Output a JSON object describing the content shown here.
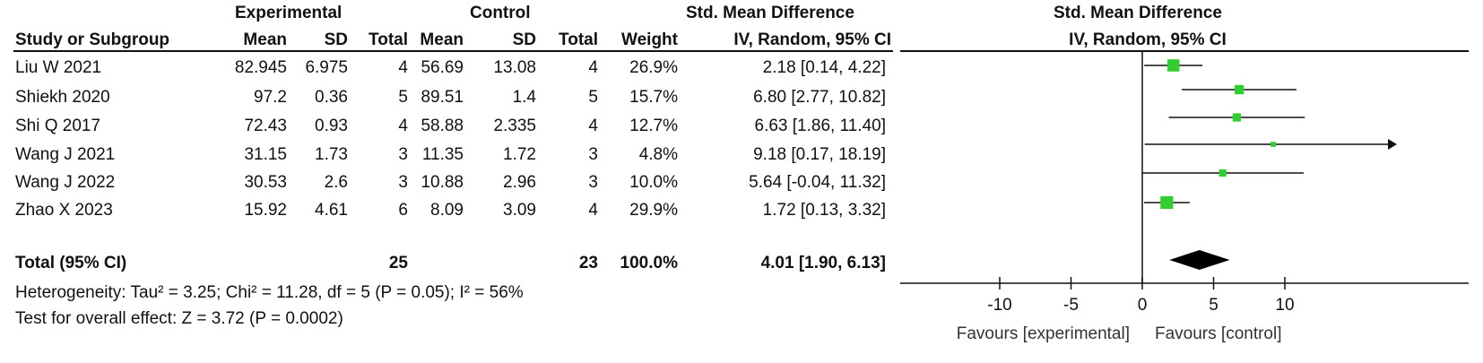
{
  "header": {
    "experimental_group": "Experimental",
    "control_group": "Control",
    "smd_group": "Std. Mean Difference",
    "plot_group": "Std. Mean Difference",
    "col_study": "Study or Subgroup",
    "col_exp_mean": "Mean",
    "col_exp_sd": "SD",
    "col_exp_total": "Total",
    "col_ctl_mean": "Mean",
    "col_ctl_sd": "SD",
    "col_ctl_total": "Total",
    "col_weight": "Weight",
    "col_ci": "IV, Random, 95% CI",
    "plot_ci": "IV, Random, 95% CI"
  },
  "rows": [
    {
      "study": "Liu W 2021",
      "exp_mean": "82.945",
      "exp_sd": "6.975",
      "exp_total": "4",
      "ctl_mean": "56.69",
      "ctl_sd": "13.08",
      "ctl_total": "4",
      "weight": "26.9%",
      "ci_text": "2.18 [0.14, 4.22]"
    },
    {
      "study": "Shiekh 2020",
      "exp_mean": "97.2",
      "exp_sd": "0.36",
      "exp_total": "5",
      "ctl_mean": "89.51",
      "ctl_sd": "1.4",
      "ctl_total": "5",
      "weight": "15.7%",
      "ci_text": "6.80 [2.77, 10.82]"
    },
    {
      "study": "Shi Q 2017",
      "exp_mean": "72.43",
      "exp_sd": "0.93",
      "exp_total": "4",
      "ctl_mean": "58.88",
      "ctl_sd": "2.335",
      "ctl_total": "4",
      "weight": "12.7%",
      "ci_text": "6.63 [1.86, 11.40]"
    },
    {
      "study": "Wang J 2021",
      "exp_mean": "31.15",
      "exp_sd": "1.73",
      "exp_total": "3",
      "ctl_mean": "11.35",
      "ctl_sd": "1.72",
      "ctl_total": "3",
      "weight": "4.8%",
      "ci_text": "9.18 [0.17, 18.19]"
    },
    {
      "study": "Wang J 2022",
      "exp_mean": "30.53",
      "exp_sd": "2.6",
      "exp_total": "3",
      "ctl_mean": "10.88",
      "ctl_sd": "2.96",
      "ctl_total": "3",
      "weight": "10.0%",
      "ci_text": "5.64 [-0.04, 11.32]"
    },
    {
      "study": "Zhao X 2023",
      "exp_mean": "15.92",
      "exp_sd": "4.61",
      "exp_total": "6",
      "ctl_mean": "8.09",
      "ctl_sd": "3.09",
      "ctl_total": "4",
      "weight": "29.9%",
      "ci_text": "1.72 [0.13, 3.32]"
    }
  ],
  "total": {
    "label": "Total (95% CI)",
    "exp_total": "25",
    "ctl_total": "23",
    "weight": "100.0%",
    "ci_text": "4.01 [1.90, 6.13]"
  },
  "footer": {
    "heterogeneity": "Heterogeneity: Tau² = 3.25; Chi² = 11.28, df = 5 (P = 0.05); I² = 56%",
    "overall_effect": "Test for overall effect: Z = 3.72 (P = 0.0002)"
  },
  "axis": {
    "favours_left": "Favours [experimental]",
    "favours_right": "Favours [control]"
  },
  "chart_data": {
    "type": "scatter",
    "xlim": [
      -20,
      20
    ],
    "ticks": [
      -10,
      -5,
      0,
      5,
      10
    ],
    "tick_labels": [
      "-10",
      "-5",
      "0",
      "5",
      "10"
    ],
    "marker_color": "#33cc33",
    "diamond_color": "#000000",
    "studies": [
      {
        "label": "Liu W 2021",
        "est": 2.18,
        "lo": 0.14,
        "hi": 4.22,
        "weight": 26.9
      },
      {
        "label": "Shiekh 2020",
        "est": 6.8,
        "lo": 2.77,
        "hi": 10.82,
        "weight": 15.7
      },
      {
        "label": "Shi Q 2017",
        "est": 6.63,
        "lo": 1.86,
        "hi": 11.4,
        "weight": 12.7
      },
      {
        "label": "Wang J 2021",
        "est": 9.18,
        "lo": 0.17,
        "hi": 18.19,
        "weight": 4.8
      },
      {
        "label": "Wang J 2022",
        "est": 5.64,
        "lo": -0.04,
        "hi": 11.32,
        "weight": 10.0
      },
      {
        "label": "Zhao X 2023",
        "est": 1.72,
        "lo": 0.13,
        "hi": 3.32,
        "weight": 29.9
      }
    ],
    "pooled": {
      "est": 4.01,
      "lo": 1.9,
      "hi": 6.13
    }
  }
}
